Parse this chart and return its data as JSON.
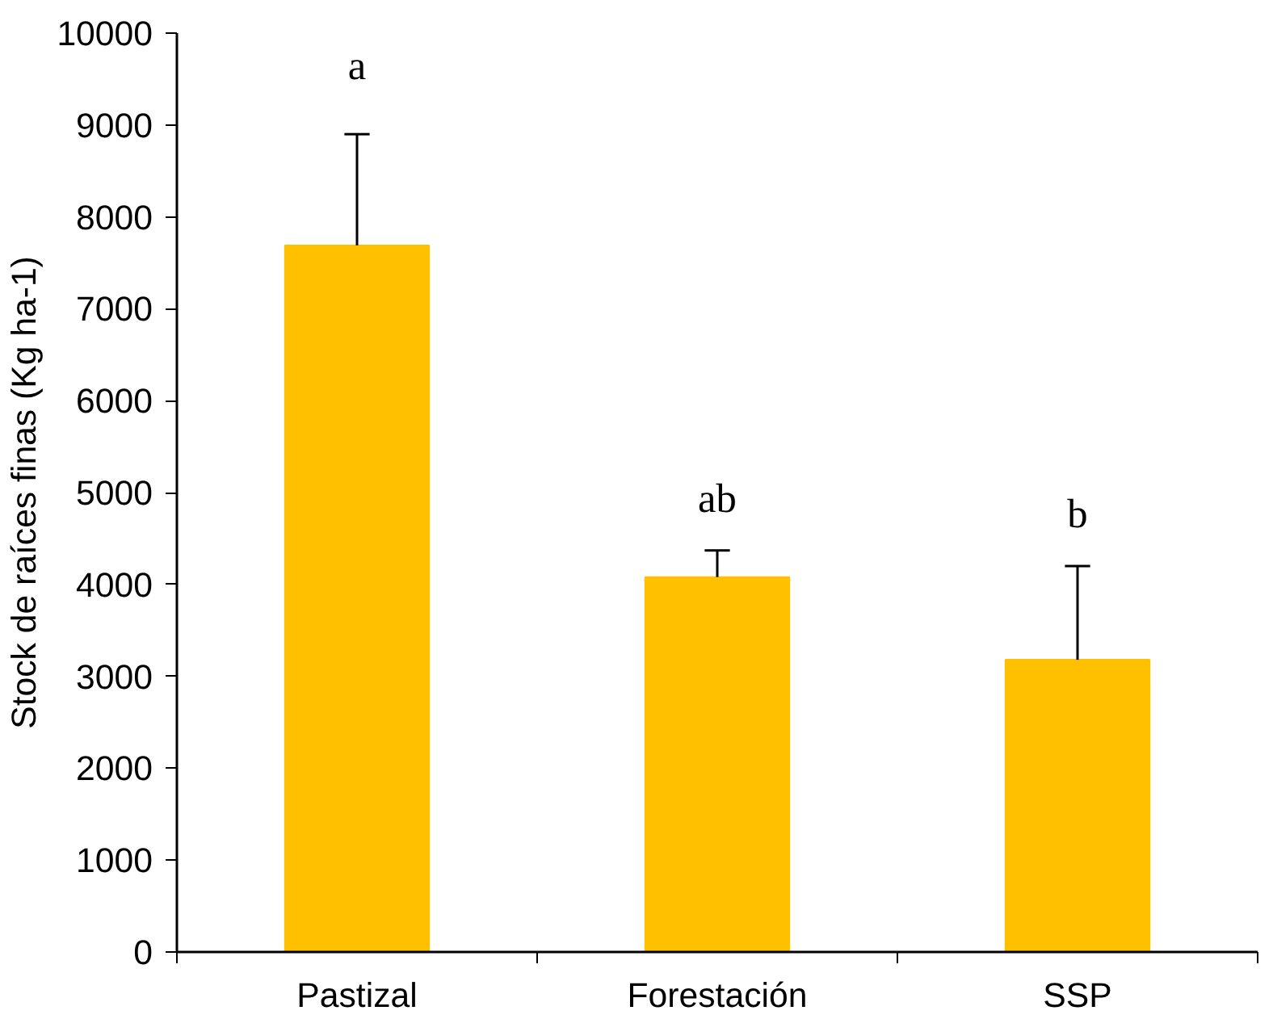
{
  "chart_data": {
    "type": "bar",
    "ylabel": "Stock de raíces finas (Kg ha-1)",
    "categories": [
      "Pastizal",
      "Forestación",
      "SSP"
    ],
    "values": [
      7690,
      4080,
      3180
    ],
    "errors": [
      [
        7690,
        8900
      ],
      [
        4080,
        4370
      ],
      [
        3180,
        4200
      ]
    ],
    "color": "#ffc000",
    "ylim": [
      0,
      10000
    ],
    "yticks": [
      0,
      1000,
      2000,
      3000,
      4000,
      5000,
      6000,
      7000,
      8000,
      9000,
      10000
    ],
    "grid": false,
    "annotations": [
      "a",
      "ab",
      "b"
    ]
  }
}
